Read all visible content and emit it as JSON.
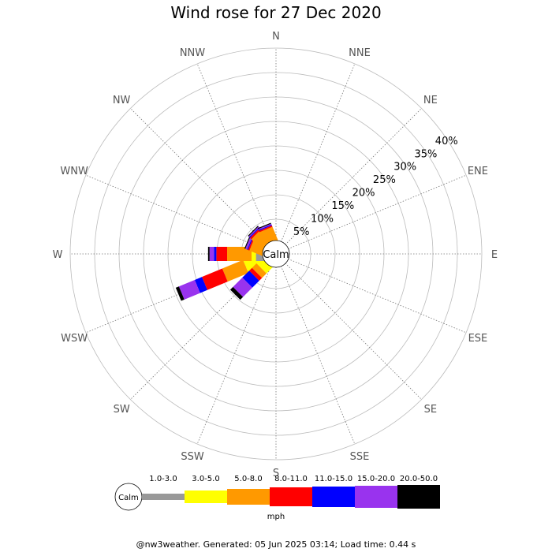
{
  "chart_data": {
    "type": "wind-rose",
    "title": "Wind rose for 27 Dec 2020",
    "units": "mph",
    "calm_label": "Calm",
    "directions": [
      "N",
      "NNE",
      "NE",
      "ENE",
      "E",
      "ESE",
      "SE",
      "SSE",
      "S",
      "SSW",
      "SW",
      "WSW",
      "W",
      "WNW",
      "NW",
      "NNW"
    ],
    "ring_percent": [
      5,
      10,
      15,
      20,
      25,
      30,
      35,
      40
    ],
    "ring_labels": [
      "5%",
      "10%",
      "15%",
      "20%",
      "25%",
      "30%",
      "35%",
      "40%"
    ],
    "speed_bins": [
      {
        "label": "1.0-3.0",
        "color": "#999999"
      },
      {
        "label": "3.0-5.0",
        "color": "#ffff00"
      },
      {
        "label": "5.0-8.0",
        "color": "#ff9900"
      },
      {
        "label": "8.0-11.0",
        "color": "#ff0000"
      },
      {
        "label": "11.0-15.0",
        "color": "#0000ff"
      },
      {
        "label": "15.0-20.0",
        "color": "#9933ee"
      },
      {
        "label": "20.0-50.0",
        "color": "#000000"
      }
    ],
    "series": [
      {
        "direction": "WSW",
        "values": [
          0.0,
          4.6,
          9.2,
          13.7,
          15.3,
          18.8,
          19.5
        ]
      },
      {
        "direction": "SW",
        "values": [
          0.0,
          2.1,
          3.4,
          4.2,
          6.2,
          8.9,
          9.7
        ]
      },
      {
        "direction": "W",
        "values": [
          2.0,
          2.9,
          7.9,
          10.1,
          10.6,
          11.5,
          11.8
        ]
      },
      {
        "direction": "WNW",
        "values": [
          0.0,
          0.0,
          3.2,
          3.5,
          3.7,
          4.1,
          4.3
        ]
      },
      {
        "direction": "NW",
        "values": [
          0.0,
          0.0,
          3.6,
          4.0,
          4.2,
          4.4,
          4.6
        ]
      },
      {
        "direction": "NNW",
        "values": [
          0.0,
          0.0,
          3.3,
          3.6,
          3.8,
          4.0,
          4.2
        ]
      },
      {
        "direction": "SSW",
        "values": [
          0.0,
          0.0,
          0.0,
          0.0,
          0.0,
          0.0,
          0.0
        ]
      },
      {
        "direction": "S",
        "values": [
          0.0,
          0.0,
          0.0,
          0.0,
          0.0,
          0.0,
          0.0
        ]
      }
    ]
  },
  "footer_text": "@nw3weather. Generated: 05 Jun 2025 03:14; Load time: 0.44 s"
}
